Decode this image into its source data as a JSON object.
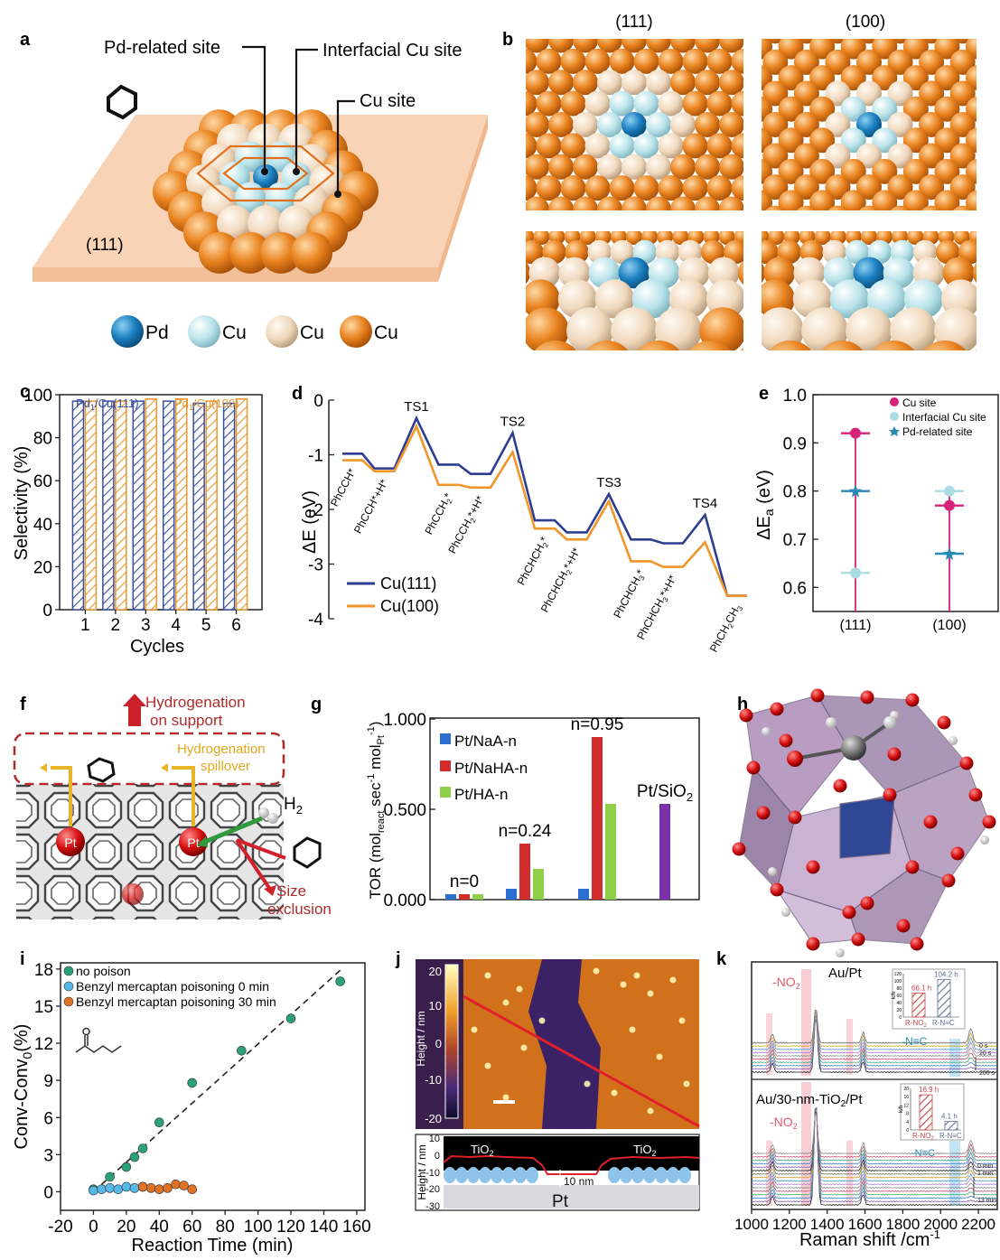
{
  "panels": {
    "a": {
      "letter": "a",
      "callouts": [
        "Pd-related site",
        "Interfacial Cu site",
        "Cu site"
      ],
      "plate_label": "(111)",
      "legend": [
        "Pd",
        "Cu",
        "Cu",
        "Cu"
      ],
      "colors": {
        "pd": "#1b7fc0",
        "cu_light": "#bfe6ec",
        "cu_beige": "#f3dcc4",
        "cu_orange": "#e7821d",
        "plate": "#f9d3b5"
      }
    },
    "b": {
      "letter": "b",
      "col_titles": [
        "(111)",
        "(100)"
      ]
    },
    "f": {
      "letter": "f",
      "labels": [
        "Hydrogenation",
        "on support",
        "Hydrogenation",
        "spillover",
        "H",
        "2",
        "Size",
        "exclusion",
        "Pt",
        "Pt"
      ]
    },
    "h": {
      "letter": "h"
    },
    "j": {
      "letter": "j",
      "colorbar_label": "Height / nm",
      "colorbar_ticks": [
        "20",
        "10",
        "0",
        "-10",
        "-20"
      ],
      "profile_axis_label": "Height / nm",
      "profile_ticks": [
        "10",
        "0",
        "-10",
        "-20",
        "-30"
      ],
      "labels": [
        "TiO",
        "2",
        "TiO",
        "2",
        "10 nm",
        "Pt"
      ]
    },
    "k": {
      "letter": "k",
      "titles": [
        "Au/Pt",
        "Au/30-nm-TiO",
        "2",
        "/Pt"
      ],
      "labels": [
        "-NO",
        "2",
        "-NO",
        "2",
        "-N≡C",
        "-N≡C"
      ],
      "time_labels": [
        "0 s",
        "20 s",
        "200 s",
        "0 min",
        "1 min",
        "13 min"
      ],
      "inset_ylabel": "k/h",
      "inset_ticks": [
        [
          "0",
          "20",
          "40",
          "60",
          "80",
          "100",
          "120"
        ],
        [
          "0",
          "4",
          "8",
          "12",
          "16",
          "20"
        ]
      ],
      "inset_values": [
        [
          "66.1 h",
          "104.2 h"
        ],
        [
          "16.9 h",
          "4.1 h"
        ]
      ],
      "inset_cats": [
        "R-NO",
        "2",
        "R-N≡C"
      ],
      "xlabel": "Raman shift /cm",
      "xlabel_sup": "-1",
      "xticks": [
        "1000",
        "1200",
        "1400",
        "1600",
        "1800",
        "2000",
        "2200"
      ]
    }
  },
  "chart_data": [
    {
      "panel": "c",
      "type": "bar",
      "letter": "c",
      "categories": [
        "1",
        "2",
        "3",
        "4",
        "5",
        "6"
      ],
      "series": [
        {
          "name": "Pd",
          "name_parts": [
            "Pd",
            "1",
            "/Cu(111)"
          ],
          "values": [
            97,
            97,
            97,
            97,
            96,
            96
          ],
          "color": "#3a4fa0"
        },
        {
          "name": "Pd",
          "name_parts": [
            "Pd",
            "1",
            "/Cu(100)"
          ],
          "values": [
            97,
            97,
            98,
            98,
            97,
            98
          ],
          "color": "#e8962e"
        }
      ],
      "xlabel": "Cycles",
      "ylabel": "Selectivity (%)",
      "ylim": [
        0,
        100
      ],
      "yticks": [
        "0",
        "20",
        "40",
        "60",
        "80",
        "100"
      ]
    },
    {
      "panel": "d",
      "type": "line",
      "letter": "d",
      "ylabel": "ΔE (eV)",
      "ylim": [
        -4,
        0
      ],
      "yticks": [
        "0",
        "-1",
        "-2",
        "-3",
        "-4"
      ],
      "states": [
        "PhCCH*",
        "PhCCH*+H*",
        "TS1",
        "PhCCH2*",
        "PhCCH2*+H*",
        "TS2",
        "PhCHCH2*",
        "PhCHCH2*+H*",
        "TS3",
        "PhCHCH3*",
        "PhCHCH3*+H*",
        "TS4",
        "PhCH2CH3"
      ],
      "state_labels": [
        [
          "PhCCH*"
        ],
        [
          "PhCCH*+H*"
        ],
        [
          "TS1"
        ],
        [
          "PhCCH",
          "2",
          "*"
        ],
        [
          "PhCCH",
          "2",
          "*+H*"
        ],
        [
          "TS2"
        ],
        [
          "PhCHCH",
          "2",
          "*"
        ],
        [
          "PhCHCH",
          "2",
          "*+H*"
        ],
        [
          "TS3"
        ],
        [
          "PhCHCH",
          "3",
          "*"
        ],
        [
          "PhCHCH",
          "3",
          "*+H*"
        ],
        [
          "TS4"
        ],
        [
          "PhCH",
          "2",
          "CH",
          "3"
        ]
      ],
      "series": [
        {
          "name": "Cu(111)",
          "values": [
            -0.98,
            -1.25,
            -0.33,
            -1.18,
            -1.35,
            -0.6,
            -2.2,
            -2.42,
            -1.72,
            -2.55,
            -2.62,
            -2.1,
            -3.58
          ],
          "color": "#2d3e91"
        },
        {
          "name": "Cu(100)",
          "values": [
            -1.1,
            -1.3,
            -0.48,
            -1.55,
            -1.6,
            -0.95,
            -2.35,
            -2.55,
            -1.85,
            -2.95,
            -3.05,
            -2.6,
            -3.58
          ],
          "color": "#f0962a"
        }
      ]
    },
    {
      "panel": "e",
      "type": "scatter",
      "letter": "e",
      "categories": [
        "(111)",
        "(100)"
      ],
      "ylabel": "ΔE",
      "ylabel_sub": "a",
      "ylabel_unit": " (eV)",
      "ylim": [
        0.55,
        1.0
      ],
      "yticks": [
        "0.6",
        "0.7",
        "0.8",
        "0.9",
        "1.0"
      ],
      "series": [
        {
          "name": "Cu site",
          "values": [
            0.92,
            0.77
          ],
          "color": "#d6227a"
        },
        {
          "name": "Interfacial Cu site",
          "values": [
            0.63,
            0.8
          ],
          "color": "#a9dde3"
        },
        {
          "name": "Pd-related site",
          "values": [
            0.8,
            0.67
          ],
          "color": "#2a8ab5"
        }
      ]
    },
    {
      "panel": "g",
      "type": "bar",
      "letter": "g",
      "categories": [
        "n=0",
        "n=0.24",
        "n=0.95",
        "Pt/SiO2"
      ],
      "category_labels": [
        [
          "n=0"
        ],
        [
          "n=0.24"
        ],
        [
          "n=0.95"
        ],
        [
          "Pt/SiO",
          "2"
        ]
      ],
      "series": [
        {
          "name": "Pt/NaA-n",
          "values": [
            0.03,
            0.06,
            0.06,
            null
          ],
          "color": "#2b6fd1"
        },
        {
          "name": "Pt/NaHA-n",
          "values": [
            0.03,
            0.31,
            0.9,
            null
          ],
          "color": "#d22c2c"
        },
        {
          "name": "Pt/HA-n",
          "values": [
            0.03,
            0.17,
            0.53,
            null
          ],
          "color": "#8fd04b"
        },
        {
          "name": "Pt/SiO2",
          "values": [
            null,
            null,
            null,
            0.53
          ],
          "color": "#7b2fa8"
        }
      ],
      "ylabel_parts": [
        "TOR (mol",
        "react",
        " sec",
        "-1",
        " mol",
        "Pt",
        "-1",
        ")"
      ],
      "ylim": [
        0,
        1.0
      ],
      "yticks": [
        "0.000",
        "0.500",
        "1.000"
      ]
    },
    {
      "panel": "i",
      "type": "scatter",
      "letter": "i",
      "series": [
        {
          "name": "no poison",
          "color": "#2aa176",
          "points": [
            [
              0,
              0.2
            ],
            [
              10,
              1.2
            ],
            [
              20,
              2.0
            ],
            [
              25,
              2.8
            ],
            [
              30,
              3.5
            ],
            [
              40,
              5.6
            ],
            [
              60,
              8.8
            ],
            [
              90,
              11.4
            ],
            [
              120,
              14.0
            ],
            [
              150,
              17.0
            ]
          ]
        },
        {
          "name": "Benzyl mercaptan poisoning 0 min",
          "color": "#57b8ea",
          "points": [
            [
              0,
              0.1
            ],
            [
              5,
              0.2
            ],
            [
              10,
              0.3
            ],
            [
              15,
              0.2
            ],
            [
              20,
              0.4
            ],
            [
              25,
              0.3
            ],
            [
              30,
              0.4
            ]
          ]
        },
        {
          "name": "Benzyl mercaptan poisoning 30 min",
          "color": "#e07226",
          "points": [
            [
              30,
              0.4
            ],
            [
              35,
              0.3
            ],
            [
              40,
              0.2
            ],
            [
              45,
              0.3
            ],
            [
              50,
              0.6
            ],
            [
              55,
              0.5
            ],
            [
              60,
              0.2
            ]
          ]
        }
      ],
      "fit": [
        [
          0,
          0
        ],
        [
          150,
          17.9
        ]
      ],
      "xlabel": "Reaction Time  (min)",
      "ylabel_parts": [
        "Conv-Conv",
        "0",
        "(%)"
      ],
      "xlim": [
        -20,
        165
      ],
      "ylim": [
        -1.5,
        18.5
      ],
      "xticks": [
        "-20",
        "0",
        "20",
        "40",
        "60",
        "80",
        "100",
        "120",
        "140",
        "160"
      ],
      "yticks": [
        "0",
        "3",
        "6",
        "9",
        "12",
        "15",
        "18"
      ]
    }
  ]
}
